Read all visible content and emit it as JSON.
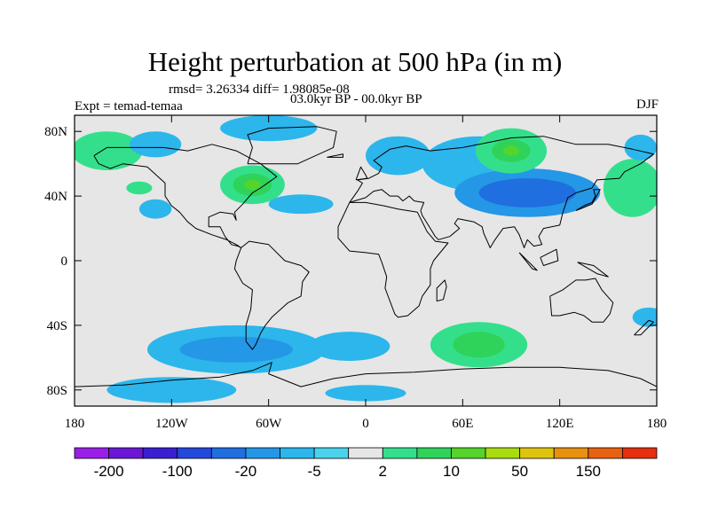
{
  "header": {
    "title": "Height perturbation at 500 hPa (in m)",
    "stats": "rmsd= 3.26334 diff= 1.98085e-08",
    "period": "03.0kyr BP - 00.0kyr BP",
    "experiment": "Expt = temad-temaa",
    "season": "DJF"
  },
  "chart_data": {
    "type": "contour-map",
    "title": "Height perturbation at 500 hPa (in m)",
    "projection": "cylindrical-equidistant",
    "lon_range": [
      -180,
      180
    ],
    "lat_range": [
      -90,
      90
    ],
    "x_ticks": [
      {
        "value": -180,
        "label": "180"
      },
      {
        "value": -120,
        "label": "120W"
      },
      {
        "value": -60,
        "label": "60W"
      },
      {
        "value": 0,
        "label": "0"
      },
      {
        "value": 60,
        "label": "60E"
      },
      {
        "value": 120,
        "label": "120E"
      },
      {
        "value": 180,
        "label": "180"
      }
    ],
    "y_ticks": [
      {
        "value": 80,
        "label": "80N"
      },
      {
        "value": 40,
        "label": "40N"
      },
      {
        "value": 0,
        "label": "0"
      },
      {
        "value": -40,
        "label": "40S"
      },
      {
        "value": -80,
        "label": "80S"
      }
    ],
    "colorbar": {
      "levels": [
        -200,
        -150,
        -100,
        -50,
        -20,
        -10,
        -5,
        -2,
        2,
        5,
        10,
        20,
        50,
        100,
        150,
        200
      ],
      "colors": [
        "#9a1ee8",
        "#6a18d6",
        "#3a1fd0",
        "#2348dc",
        "#1f6fe0",
        "#2497e6",
        "#2cb6ec",
        "#4ad3ec",
        "#e6e6e6",
        "#34df8c",
        "#2fd35a",
        "#55d42a",
        "#a8dd12",
        "#dfc40e",
        "#e89010",
        "#e8610f",
        "#e62f10"
      ],
      "labels": [
        "-200",
        "-100",
        "-20",
        "-5",
        "2",
        "10",
        "50",
        "150"
      ]
    },
    "features": [
      {
        "lon": -140,
        "lat": 45,
        "rx": 18,
        "ry": 10,
        "cat": 8,
        "inner": [
          {
            "rx": 8,
            "ry": 4,
            "cat": 9
          }
        ]
      },
      {
        "lon": -70,
        "lat": 47,
        "rx": 20,
        "ry": 12,
        "cat": 9,
        "inner": [
          {
            "rx": 12,
            "ry": 7,
            "cat": 10
          },
          {
            "rx": 5,
            "ry": 3,
            "cat": 11
          }
        ]
      },
      {
        "lon": -160,
        "lat": 68,
        "rx": 22,
        "ry": 12,
        "cat": 9
      },
      {
        "lon": -130,
        "lat": 72,
        "rx": 16,
        "ry": 8,
        "cat": 6
      },
      {
        "lon": -130,
        "lat": 32,
        "rx": 10,
        "ry": 6,
        "cat": 6
      },
      {
        "lon": -60,
        "lat": 82,
        "rx": 30,
        "ry": 8,
        "cat": 6
      },
      {
        "lon": -40,
        "lat": 35,
        "rx": 20,
        "ry": 6,
        "cat": 6
      },
      {
        "lon": 0,
        "lat": 53,
        "rx": 15,
        "ry": 7,
        "cat": 8
      },
      {
        "lon": 20,
        "lat": 28,
        "rx": 8,
        "ry": 4,
        "cat": 8
      },
      {
        "lon": 20,
        "lat": 65,
        "rx": 20,
        "ry": 12,
        "cat": 6
      },
      {
        "lon": 70,
        "lat": 60,
        "rx": 35,
        "ry": 17,
        "cat": 6
      },
      {
        "lon": 100,
        "lat": 42,
        "rx": 45,
        "ry": 15,
        "cat": 5,
        "inner": [
          {
            "rx": 30,
            "ry": 9,
            "cat": 4
          }
        ]
      },
      {
        "lon": 90,
        "lat": 68,
        "rx": 22,
        "ry": 14,
        "cat": 9,
        "inner": [
          {
            "rx": 12,
            "ry": 7,
            "cat": 10
          },
          {
            "rx": 5,
            "ry": 3,
            "cat": 11
          }
        ]
      },
      {
        "lon": 165,
        "lat": 45,
        "rx": 18,
        "ry": 18,
        "cat": 9
      },
      {
        "lon": 170,
        "lat": 70,
        "rx": 10,
        "ry": 8,
        "cat": 6
      },
      {
        "lon": -155,
        "lat": -28,
        "rx": 14,
        "ry": 5,
        "cat": 8
      },
      {
        "lon": -75,
        "lat": -30,
        "rx": 35,
        "ry": 8,
        "cat": 8
      },
      {
        "lon": -150,
        "lat": -55,
        "rx": 40,
        "ry": 10,
        "cat": 8
      },
      {
        "lon": -80,
        "lat": -55,
        "rx": 55,
        "ry": 15,
        "cat": 6,
        "inner": [
          {
            "rx": 35,
            "ry": 8,
            "cat": 5
          }
        ]
      },
      {
        "lon": -10,
        "lat": -53,
        "rx": 25,
        "ry": 9,
        "cat": 6
      },
      {
        "lon": 50,
        "lat": -30,
        "rx": 25,
        "ry": 7,
        "cat": 8
      },
      {
        "lon": 70,
        "lat": -52,
        "rx": 30,
        "ry": 14,
        "cat": 9,
        "inner": [
          {
            "rx": 16,
            "ry": 8,
            "cat": 10
          }
        ]
      },
      {
        "lon": 140,
        "lat": -54,
        "rx": 25,
        "ry": 10,
        "cat": 8
      },
      {
        "lon": 175,
        "lat": -35,
        "rx": 10,
        "ry": 6,
        "cat": 6
      },
      {
        "lon": -120,
        "lat": -80,
        "rx": 40,
        "ry": 8,
        "cat": 6
      },
      {
        "lon": 100,
        "lat": -80,
        "rx": 35,
        "ry": 6,
        "cat": 8
      },
      {
        "lon": 0,
        "lat": -82,
        "rx": 25,
        "ry": 5,
        "cat": 6
      }
    ],
    "coastlines": [
      [
        [
          -168,
          65
        ],
        [
          -160,
          70
        ],
        [
          -140,
          70
        ],
        [
          -125,
          70
        ],
        [
          -110,
          68
        ],
        [
          -95,
          72
        ],
        [
          -80,
          68
        ],
        [
          -65,
          60
        ],
        [
          -55,
          52
        ],
        [
          -65,
          45
        ],
        [
          -70,
          42
        ],
        [
          -76,
          35
        ],
        [
          -81,
          30
        ],
        [
          -80,
          25
        ],
        [
          -82,
          29
        ],
        [
          -90,
          30
        ],
        [
          -97,
          27
        ],
        [
          -97,
          21
        ],
        [
          -90,
          21
        ],
        [
          -87,
          15
        ],
        [
          -83,
          10
        ],
        [
          -79,
          9
        ],
        [
          -77,
          8
        ],
        [
          -80,
          10
        ],
        [
          -86,
          13
        ],
        [
          -95,
          16
        ],
        [
          -105,
          20
        ],
        [
          -110,
          24
        ],
        [
          -115,
          30
        ],
        [
          -120,
          34
        ],
        [
          -124,
          40
        ],
        [
          -124,
          48
        ],
        [
          -135,
          58
        ],
        [
          -150,
          60
        ],
        [
          -158,
          57
        ],
        [
          -165,
          60
        ],
        [
          -168,
          65
        ]
      ],
      [
        [
          -77,
          8
        ],
        [
          -72,
          12
        ],
        [
          -60,
          10
        ],
        [
          -50,
          0
        ],
        [
          -40,
          -3
        ],
        [
          -35,
          -7
        ],
        [
          -39,
          -13
        ],
        [
          -40,
          -22
        ],
        [
          -48,
          -26
        ],
        [
          -58,
          -35
        ],
        [
          -62,
          -40
        ],
        [
          -65,
          -45
        ],
        [
          -68,
          -52
        ],
        [
          -70,
          -55
        ],
        [
          -74,
          -50
        ],
        [
          -74,
          -40
        ],
        [
          -71,
          -30
        ],
        [
          -70,
          -18
        ],
        [
          -76,
          -14
        ],
        [
          -81,
          -5
        ],
        [
          -80,
          0
        ],
        [
          -77,
          8
        ]
      ],
      [
        [
          -10,
          36
        ],
        [
          -5,
          43
        ],
        [
          -2,
          48
        ],
        [
          -5,
          50
        ],
        [
          2,
          51
        ],
        [
          8,
          54
        ],
        [
          10,
          58
        ],
        [
          5,
          62
        ],
        [
          15,
          69
        ],
        [
          25,
          71
        ],
        [
          40,
          68
        ],
        [
          60,
          70
        ],
        [
          75,
          73
        ],
        [
          90,
          76
        ],
        [
          110,
          77
        ],
        [
          130,
          72
        ],
        [
          150,
          72
        ],
        [
          165,
          69
        ],
        [
          178,
          66
        ],
        [
          170,
          60
        ],
        [
          160,
          55
        ],
        [
          157,
          51
        ],
        [
          143,
          50
        ],
        [
          140,
          45
        ],
        [
          130,
          42
        ],
        [
          125,
          39
        ],
        [
          122,
          30
        ],
        [
          120,
          22
        ],
        [
          110,
          20
        ],
        [
          107,
          15
        ],
        [
          109,
          10
        ],
        [
          104,
          9
        ],
        [
          100,
          13
        ],
        [
          98,
          8
        ],
        [
          95,
          16
        ],
        [
          92,
          21
        ],
        [
          85,
          20
        ],
        [
          80,
          13
        ],
        [
          77,
          8
        ],
        [
          73,
          17
        ],
        [
          72,
          21
        ],
        [
          67,
          24
        ],
        [
          57,
          26
        ],
        [
          55,
          23
        ],
        [
          58,
          20
        ],
        [
          52,
          15
        ],
        [
          45,
          13
        ],
        [
          43,
          15
        ],
        [
          40,
          20
        ],
        [
          35,
          28
        ],
        [
          34,
          31
        ],
        [
          36,
          36
        ],
        [
          30,
          37
        ],
        [
          27,
          40
        ],
        [
          23,
          37
        ],
        [
          20,
          40
        ],
        [
          15,
          40
        ],
        [
          10,
          44
        ],
        [
          5,
          43
        ],
        [
          0,
          39
        ],
        [
          -10,
          36
        ]
      ],
      [
        [
          -10,
          36
        ],
        [
          -17,
          21
        ],
        [
          -17,
          14
        ],
        [
          -10,
          6
        ],
        [
          0,
          5
        ],
        [
          8,
          4
        ],
        [
          10,
          -1
        ],
        [
          13,
          -10
        ],
        [
          12,
          -17
        ],
        [
          18,
          -33
        ],
        [
          20,
          -35
        ],
        [
          26,
          -34
        ],
        [
          33,
          -28
        ],
        [
          35,
          -22
        ],
        [
          40,
          -15
        ],
        [
          40,
          -5
        ],
        [
          42,
          0
        ],
        [
          51,
          11
        ],
        [
          43,
          12
        ],
        [
          38,
          18
        ],
        [
          32,
          30
        ],
        [
          20,
          32
        ],
        [
          11,
          34
        ],
        [
          0,
          36
        ],
        [
          -10,
          36
        ]
      ],
      [
        [
          44,
          -25
        ],
        [
          48,
          -24
        ],
        [
          50,
          -16
        ],
        [
          49,
          -12
        ],
        [
          44,
          -17
        ],
        [
          44,
          -25
        ]
      ],
      [
        [
          114,
          -22
        ],
        [
          122,
          -18
        ],
        [
          130,
          -12
        ],
        [
          136,
          -12
        ],
        [
          142,
          -11
        ],
        [
          146,
          -18
        ],
        [
          153,
          -26
        ],
        [
          151,
          -33
        ],
        [
          147,
          -38
        ],
        [
          140,
          -38
        ],
        [
          135,
          -34
        ],
        [
          129,
          -32
        ],
        [
          120,
          -34
        ],
        [
          115,
          -34
        ],
        [
          114,
          -22
        ]
      ],
      [
        [
          -73,
          60
        ],
        [
          -60,
          60
        ],
        [
          -42,
          60
        ],
        [
          -20,
          70
        ],
        [
          -18,
          80
        ],
        [
          -30,
          83
        ],
        [
          -60,
          82
        ],
        [
          -73,
          78
        ],
        [
          -70,
          70
        ],
        [
          -73,
          60
        ]
      ],
      [
        [
          -180,
          -78
        ],
        [
          -150,
          -77
        ],
        [
          -120,
          -74
        ],
        [
          -90,
          -72
        ],
        [
          -70,
          -68
        ],
        [
          -58,
          -63
        ],
        [
          -60,
          -70
        ],
        [
          -40,
          -78
        ],
        [
          -20,
          -73
        ],
        [
          0,
          -70
        ],
        [
          30,
          -69
        ],
        [
          60,
          -67
        ],
        [
          90,
          -66
        ],
        [
          120,
          -66
        ],
        [
          150,
          -68
        ],
        [
          170,
          -73
        ],
        [
          180,
          -78
        ]
      ],
      [
        [
          -6,
          50
        ],
        [
          -3,
          58
        ],
        [
          0,
          53
        ],
        [
          1,
          51
        ],
        [
          -6,
          50
        ]
      ],
      [
        [
          -24,
          64
        ],
        [
          -14,
          66
        ],
        [
          -14,
          64
        ],
        [
          -24,
          64
        ]
      ],
      [
        [
          130,
          31
        ],
        [
          135,
          34
        ],
        [
          140,
          36
        ],
        [
          142,
          40
        ],
        [
          141,
          44
        ],
        [
          145,
          44
        ],
        [
          140,
          35
        ],
        [
          130,
          31
        ]
      ],
      [
        [
          166,
          -46
        ],
        [
          172,
          -40
        ],
        [
          175,
          -37
        ],
        [
          178,
          -38
        ],
        [
          174,
          -42
        ],
        [
          170,
          -46
        ],
        [
          166,
          -46
        ]
      ],
      [
        [
          95,
          5
        ],
        [
          106,
          -6
        ],
        [
          103,
          -5
        ],
        [
          95,
          5
        ]
      ],
      [
        [
          108,
          2
        ],
        [
          118,
          7
        ],
        [
          119,
          0
        ],
        [
          110,
          -3
        ],
        [
          108,
          2
        ]
      ],
      [
        [
          131,
          -1
        ],
        [
          141,
          -3
        ],
        [
          150,
          -10
        ],
        [
          143,
          -8
        ],
        [
          131,
          -1
        ]
      ]
    ]
  }
}
